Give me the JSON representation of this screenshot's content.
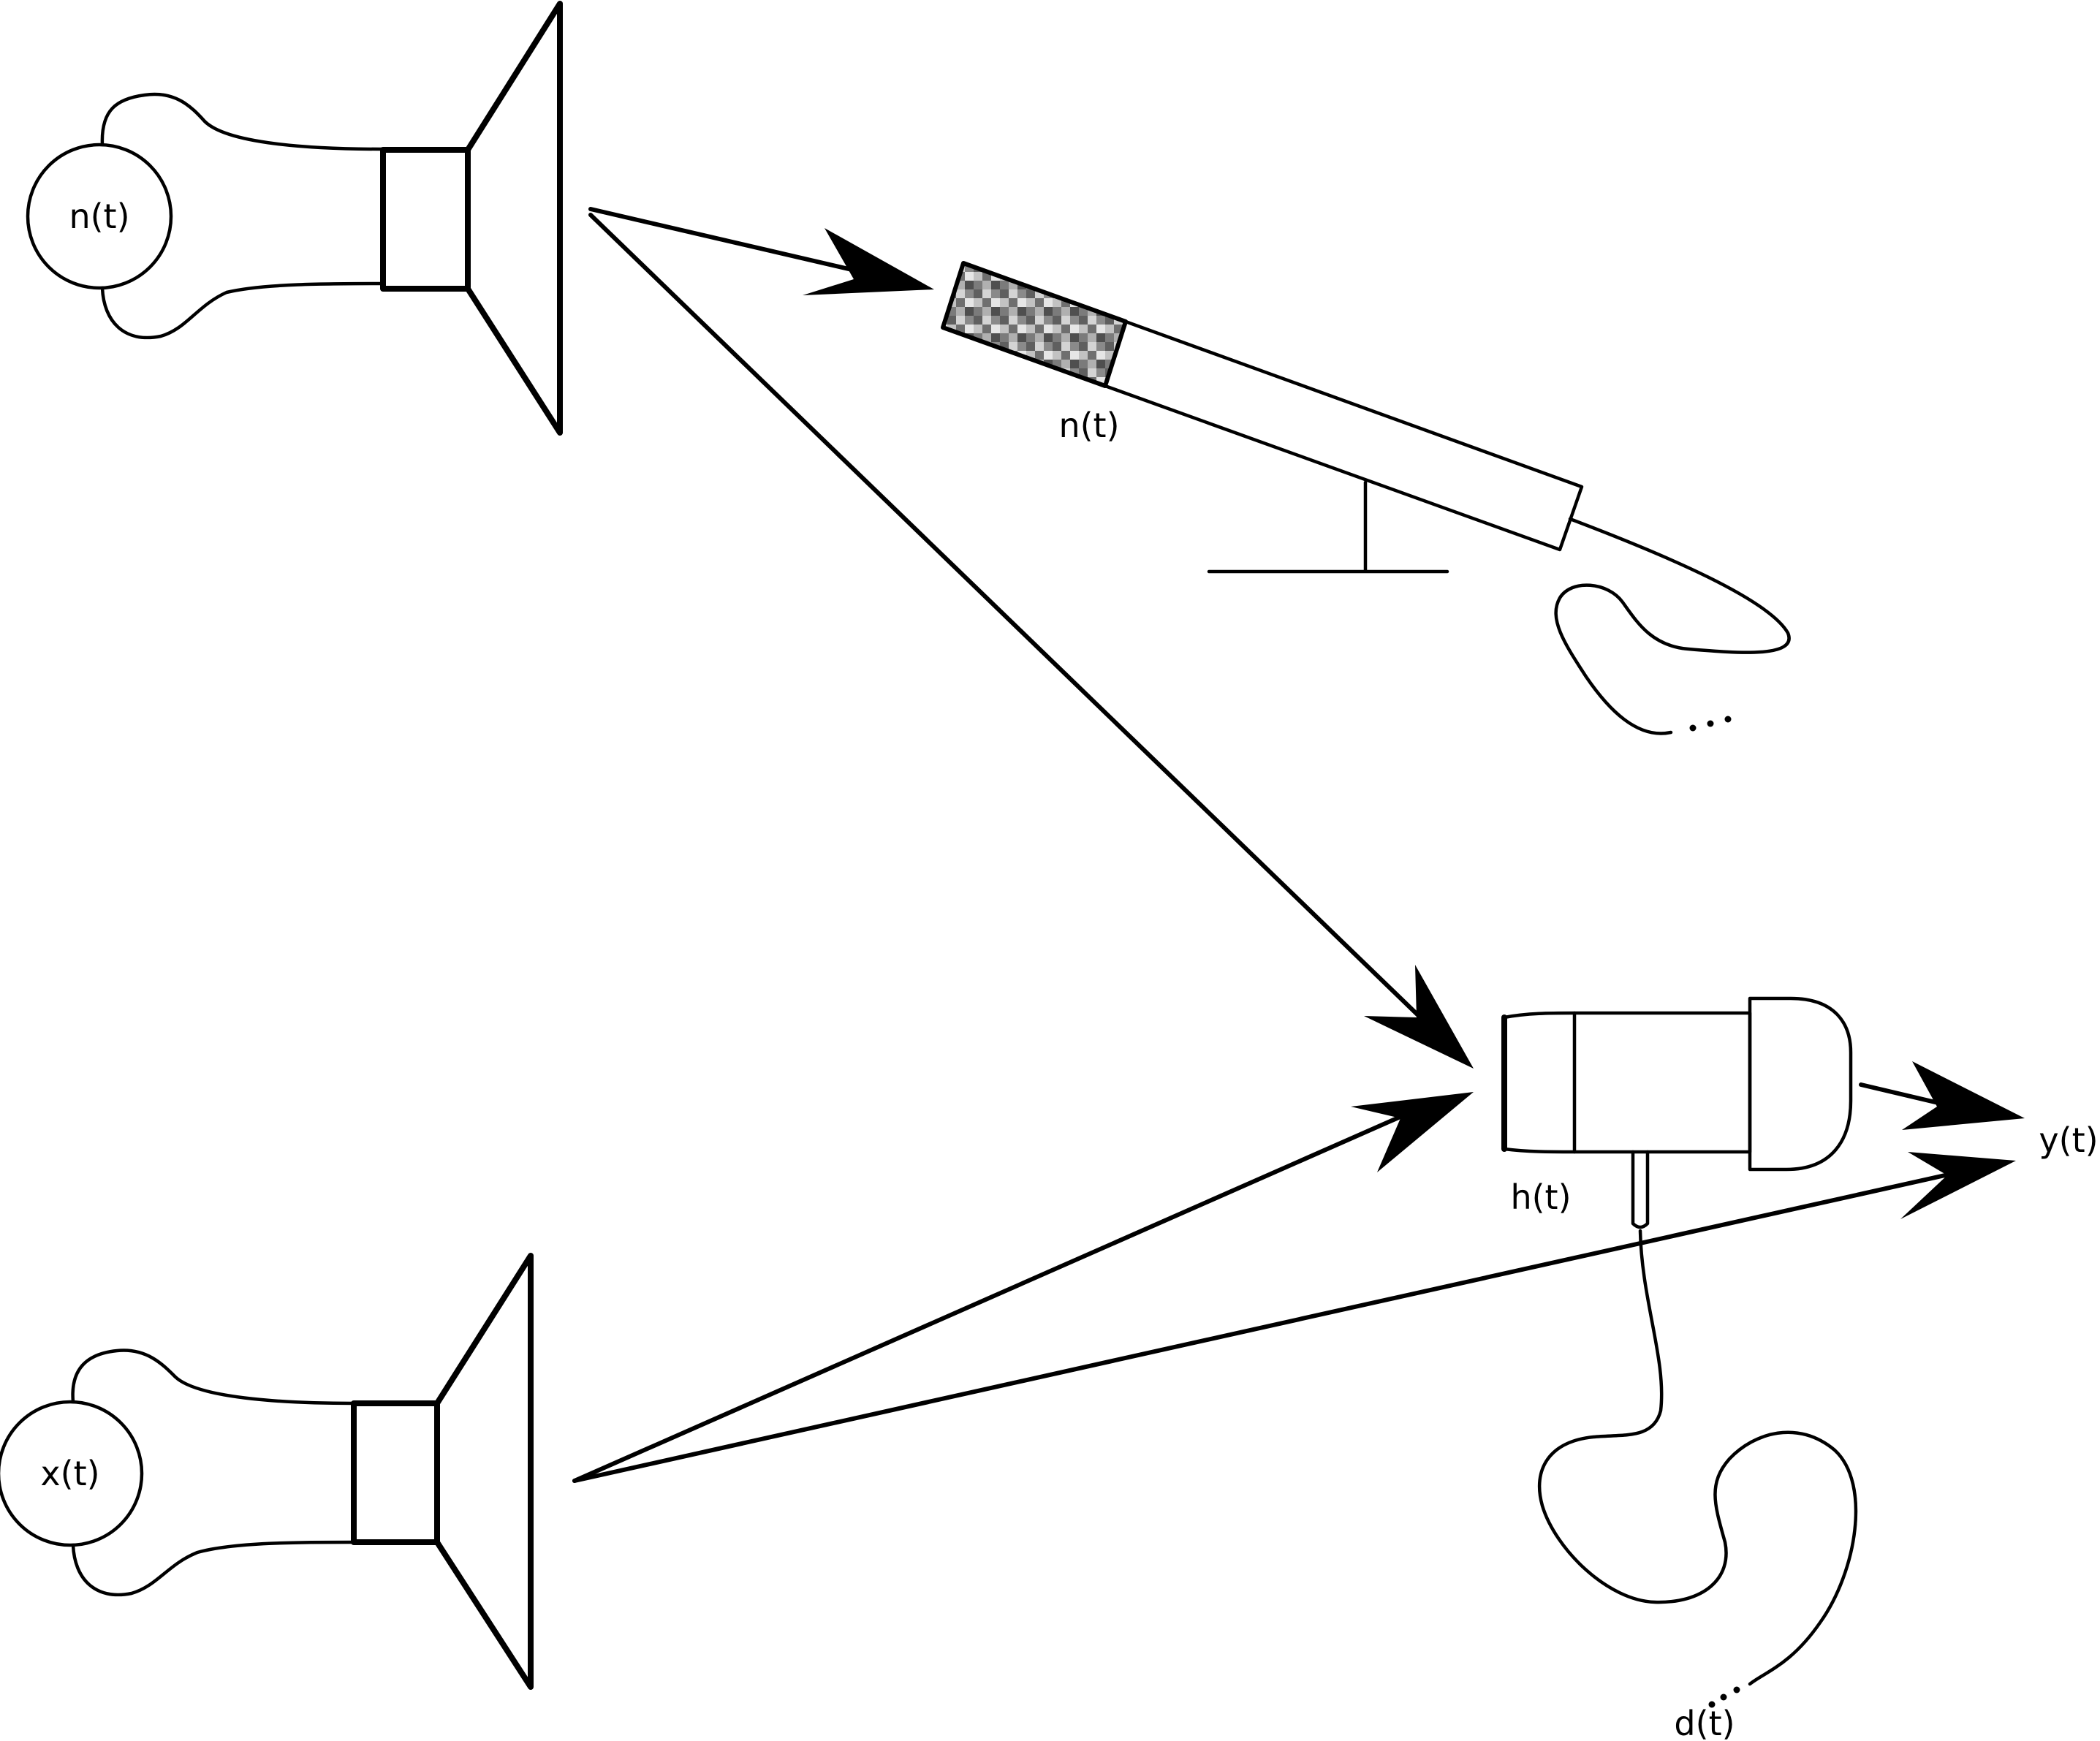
{
  "labels": {
    "noise_source": "n(t)",
    "signal_source": "x(t)",
    "reference_mic": "n(t)",
    "primary_mic": "h(t)",
    "output": "y(t)",
    "desired": "d(t)"
  },
  "colors": {
    "stroke": "#000000",
    "background": "#ffffff",
    "mesh_light": "#b5b5b5",
    "mesh_dark": "#6e6e6e"
  }
}
